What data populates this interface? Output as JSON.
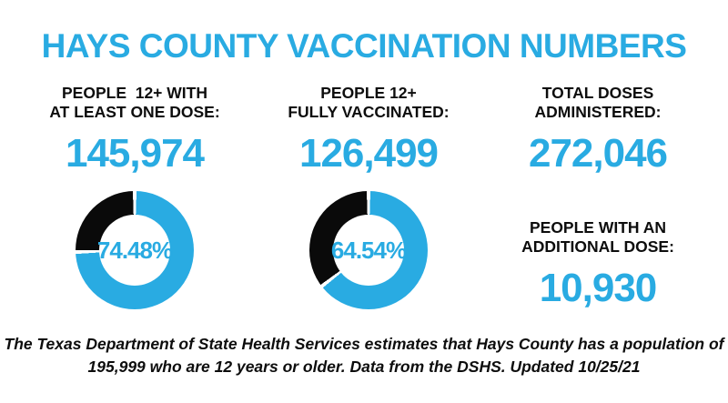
{
  "title": "HAYS COUNTY VACCINATION NUMBERS",
  "colors": {
    "accent_blue": "#29ABE2",
    "black": "#0d0d0d",
    "background": "#ffffff"
  },
  "stats": [
    {
      "label_line1": "PEOPLE  12+ WITH",
      "label_line2": "AT LEAST ONE DOSE:",
      "value": "145,974"
    },
    {
      "label_line1": "PEOPLE 12+",
      "label_line2": "FULLY VACCINATED:",
      "value": "126,499"
    },
    {
      "label_line1": "TOTAL DOSES",
      "label_line2": "ADMINISTERED:",
      "value": "272,046"
    },
    {
      "label_line1": "PEOPLE WITH AN",
      "label_line2": "ADDITIONAL DOSE:",
      "value": "10,930"
    }
  ],
  "chart_data": [
    {
      "type": "pie",
      "donut": true,
      "title": "People 12+ with at least one dose",
      "center_label": "74.48%",
      "slices": [
        {
          "name": "At least one dose",
          "value": 74.48,
          "color": "#29ABE2"
        },
        {
          "name": "Remaining",
          "value": 25.52,
          "color": "#0a0a0a"
        }
      ],
      "legend": "none",
      "start_angle": "top",
      "direction": "clockwise",
      "segment_gap_deg": 3.6
    },
    {
      "type": "pie",
      "donut": true,
      "title": "People 12+ fully vaccinated",
      "center_label": "64.54%",
      "slices": [
        {
          "name": "Fully vaccinated",
          "value": 64.54,
          "color": "#29ABE2"
        },
        {
          "name": "Remaining",
          "value": 35.46,
          "color": "#0a0a0a"
        }
      ],
      "legend": "none",
      "start_angle": "top",
      "direction": "clockwise",
      "segment_gap_deg": 3.6
    }
  ],
  "footer": {
    "line1": "The Texas Department of State Health Services estimates that Hays County has a population of",
    "line2": "195,999 who are 12 years or older. Data from the DSHS. Updated 10/25/21"
  }
}
